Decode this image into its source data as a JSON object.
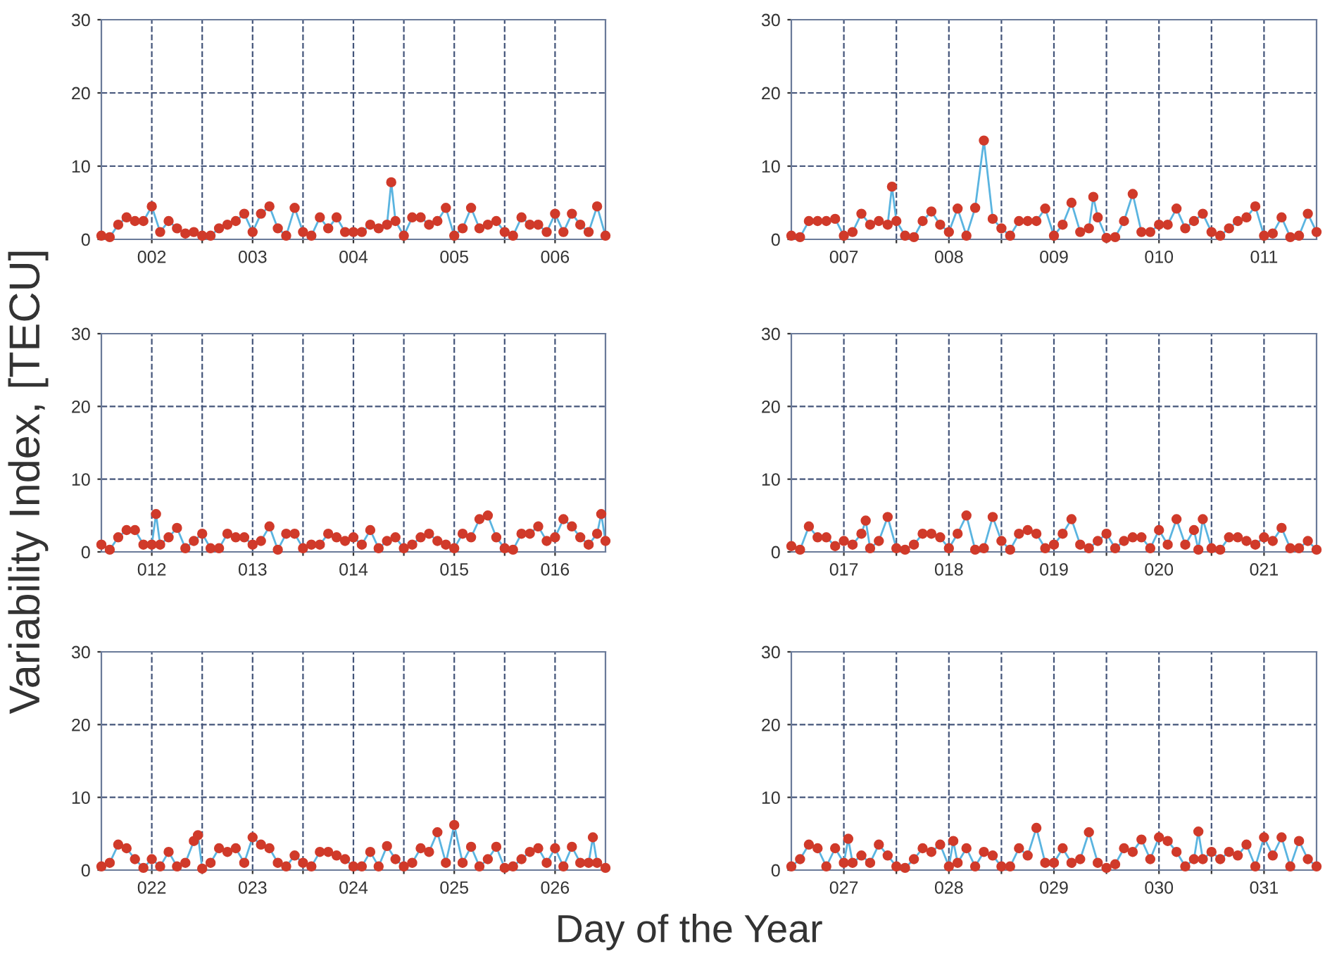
{
  "chart_data": [
    {
      "type": "line",
      "marker": "circle",
      "grid": true,
      "ylim": [
        0,
        30
      ],
      "yticks": [
        0,
        10,
        20,
        30
      ],
      "xlim": [
        1.5,
        6.5
      ],
      "xticks": [
        {
          "value": 2,
          "label": "002"
        },
        {
          "value": 2.5,
          "label": null
        },
        {
          "value": 3,
          "label": "003"
        },
        {
          "value": 3.5,
          "label": null
        },
        {
          "value": 4,
          "label": "004"
        },
        {
          "value": 4.5,
          "label": null
        },
        {
          "value": 5,
          "label": "005"
        },
        {
          "value": 5.5,
          "label": null
        },
        {
          "value": 6,
          "label": "006"
        }
      ],
      "x": [
        1.5,
        1.583,
        1.667,
        1.75,
        1.833,
        1.917,
        2.0,
        2.083,
        2.167,
        2.25,
        2.333,
        2.417,
        2.5,
        2.583,
        2.667,
        2.75,
        2.833,
        2.917,
        3.0,
        3.083,
        3.167,
        3.25,
        3.333,
        3.417,
        3.5,
        3.583,
        3.667,
        3.75,
        3.833,
        3.917,
        4.0,
        4.083,
        4.167,
        4.25,
        4.333,
        4.375,
        4.417,
        4.5,
        4.583,
        4.667,
        4.75,
        4.833,
        4.917,
        5.0,
        5.083,
        5.167,
        5.25,
        5.333,
        5.417,
        5.5,
        5.583,
        5.667,
        5.75,
        5.833,
        5.917,
        6.0,
        6.083,
        6.167,
        6.25,
        6.333,
        6.417,
        6.5
      ],
      "series": [
        {
          "color": "#d03a2a",
          "values": [
            0.5,
            0.3,
            2,
            3,
            2.5,
            2.5,
            4.5,
            1,
            2.5,
            1.5,
            0.8,
            1,
            0.5,
            0.5,
            1.5,
            2,
            2.5,
            3.5,
            1,
            3.5,
            4.5,
            1.5,
            0.5,
            4.3,
            1,
            0.5,
            3,
            1.5,
            3,
            1,
            1,
            1,
            2,
            1.5,
            2,
            7.8,
            2.5,
            0.5,
            3,
            3,
            2,
            2.5,
            4.3,
            0.5,
            1.5,
            4.3,
            1.5,
            2,
            2.5,
            1,
            0.5,
            3,
            2,
            2,
            1,
            3.5,
            1,
            3.5,
            2,
            1,
            4.5,
            0.5
          ]
        }
      ]
    },
    {
      "type": "line",
      "marker": "circle",
      "grid": true,
      "ylim": [
        0,
        30
      ],
      "yticks": [
        0,
        10,
        20,
        30
      ],
      "xlim": [
        6.5,
        11.5
      ],
      "xticks": [
        {
          "value": 7,
          "label": "007"
        },
        {
          "value": 7.5,
          "label": null
        },
        {
          "value": 8,
          "label": "008"
        },
        {
          "value": 8.5,
          "label": null
        },
        {
          "value": 9,
          "label": "009"
        },
        {
          "value": 9.5,
          "label": null
        },
        {
          "value": 10,
          "label": "010"
        },
        {
          "value": 10.5,
          "label": null
        },
        {
          "value": 11,
          "label": "011"
        }
      ],
      "x": [
        6.5,
        6.583,
        6.667,
        6.75,
        6.833,
        6.917,
        7.0,
        7.083,
        7.167,
        7.25,
        7.333,
        7.417,
        7.458,
        7.5,
        7.583,
        7.667,
        7.75,
        7.833,
        7.917,
        8.0,
        8.083,
        8.167,
        8.25,
        8.333,
        8.417,
        8.5,
        8.583,
        8.667,
        8.75,
        8.833,
        8.917,
        9.0,
        9.083,
        9.167,
        9.25,
        9.333,
        9.375,
        9.417,
        9.5,
        9.583,
        9.667,
        9.75,
        9.833,
        9.917,
        10.0,
        10.083,
        10.167,
        10.25,
        10.333,
        10.417,
        10.5,
        10.583,
        10.667,
        10.75,
        10.833,
        10.917,
        11.0,
        11.083,
        11.167,
        11.25,
        11.333,
        11.417,
        11.5
      ],
      "series": [
        {
          "color": "#d03a2a",
          "values": [
            0.5,
            0.3,
            2.5,
            2.5,
            2.5,
            2.8,
            0.5,
            1,
            3.5,
            2,
            2.5,
            2,
            7.2,
            2.5,
            0.5,
            0.3,
            2.5,
            3.8,
            2,
            1,
            4.2,
            0.5,
            4.3,
            13.5,
            2.8,
            1.5,
            0.5,
            2.5,
            2.5,
            2.5,
            4.2,
            0.5,
            2,
            5,
            1,
            1.5,
            5.8,
            3,
            0.2,
            0.3,
            2.5,
            6.2,
            1,
            1,
            2,
            2,
            4.2,
            1.5,
            2.5,
            3.5,
            1,
            0.5,
            1.5,
            2.5,
            3,
            4.5,
            0.5,
            0.8,
            3,
            0.3,
            0.5,
            3.5,
            1
          ]
        }
      ]
    },
    {
      "type": "line",
      "marker": "circle",
      "grid": true,
      "ylim": [
        0,
        30
      ],
      "yticks": [
        0,
        10,
        20,
        30
      ],
      "xlim": [
        11.5,
        16.5
      ],
      "ylabel": "Variability Index, [TECU]",
      "xticks": [
        {
          "value": 12,
          "label": "012"
        },
        {
          "value": 12.5,
          "label": null
        },
        {
          "value": 13,
          "label": "013"
        },
        {
          "value": 13.5,
          "label": null
        },
        {
          "value": 14,
          "label": "014"
        },
        {
          "value": 14.5,
          "label": null
        },
        {
          "value": 15,
          "label": "015"
        },
        {
          "value": 15.5,
          "label": null
        },
        {
          "value": 16,
          "label": "016"
        }
      ],
      "x": [
        11.5,
        11.583,
        11.667,
        11.75,
        11.833,
        11.917,
        12.0,
        12.042,
        12.083,
        12.167,
        12.25,
        12.333,
        12.417,
        12.5,
        12.583,
        12.667,
        12.75,
        12.833,
        12.917,
        13.0,
        13.083,
        13.167,
        13.25,
        13.333,
        13.417,
        13.5,
        13.583,
        13.667,
        13.75,
        13.833,
        13.917,
        14.0,
        14.083,
        14.167,
        14.25,
        14.333,
        14.417,
        14.5,
        14.583,
        14.667,
        14.75,
        14.833,
        14.917,
        15.0,
        15.083,
        15.167,
        15.25,
        15.333,
        15.417,
        15.5,
        15.583,
        15.667,
        15.75,
        15.833,
        15.917,
        16.0,
        16.083,
        16.167,
        16.25,
        16.333,
        16.417,
        16.458,
        16.5
      ],
      "series": [
        {
          "color": "#d03a2a",
          "values": [
            1,
            0.3,
            2,
            3,
            3,
            1,
            1,
            5.2,
            1,
            2,
            3.3,
            0.5,
            1.5,
            2.5,
            0.5,
            0.5,
            2.5,
            2,
            2,
            1,
            1.5,
            3.5,
            0.3,
            2.5,
            2.5,
            0.5,
            1,
            1,
            2.5,
            2,
            1.5,
            2,
            1,
            3,
            0.5,
            1.5,
            2,
            0.5,
            1,
            2,
            2.5,
            1.5,
            1,
            0.5,
            2.5,
            2,
            4.5,
            5,
            2,
            0.5,
            0.3,
            2.5,
            2.5,
            3.5,
            1.5,
            2,
            4.5,
            3.5,
            2,
            1,
            2.5,
            5.2,
            1.5
          ]
        }
      ]
    },
    {
      "type": "line",
      "marker": "circle",
      "grid": true,
      "ylim": [
        0,
        30
      ],
      "yticks": [
        0,
        10,
        20,
        30
      ],
      "xlim": [
        16.5,
        21.5
      ],
      "xticks": [
        {
          "value": 17,
          "label": "017"
        },
        {
          "value": 17.5,
          "label": null
        },
        {
          "value": 18,
          "label": "018"
        },
        {
          "value": 18.5,
          "label": null
        },
        {
          "value": 19,
          "label": "019"
        },
        {
          "value": 19.5,
          "label": null
        },
        {
          "value": 20,
          "label": "020"
        },
        {
          "value": 20.5,
          "label": null
        },
        {
          "value": 21,
          "label": "021"
        }
      ],
      "x": [
        16.5,
        16.583,
        16.667,
        16.75,
        16.833,
        16.917,
        17.0,
        17.083,
        17.167,
        17.208,
        17.25,
        17.333,
        17.417,
        17.5,
        17.583,
        17.667,
        17.75,
        17.833,
        17.917,
        18.0,
        18.083,
        18.167,
        18.25,
        18.333,
        18.417,
        18.5,
        18.583,
        18.667,
        18.75,
        18.833,
        18.917,
        19.0,
        19.083,
        19.167,
        19.25,
        19.333,
        19.417,
        19.5,
        19.583,
        19.667,
        19.75,
        19.833,
        19.917,
        20.0,
        20.083,
        20.167,
        20.25,
        20.333,
        20.375,
        20.417,
        20.5,
        20.583,
        20.667,
        20.75,
        20.833,
        20.917,
        21.0,
        21.083,
        21.167,
        21.25,
        21.333,
        21.417,
        21.5
      ],
      "series": [
        {
          "color": "#d03a2a",
          "values": [
            0.8,
            0.3,
            3.5,
            2,
            2,
            0.8,
            1.5,
            1,
            2.5,
            4.3,
            0.5,
            1.5,
            4.8,
            0.5,
            0.3,
            1,
            2.5,
            2.5,
            2,
            0.5,
            2.5,
            5,
            0.3,
            0.5,
            4.8,
            1.5,
            0.3,
            2.5,
            3,
            2.5,
            0.5,
            1,
            2.5,
            4.5,
            1,
            0.5,
            1.5,
            2.5,
            0.5,
            1.5,
            2,
            2,
            0.5,
            3,
            1,
            4.5,
            1,
            3,
            0.3,
            4.5,
            0.5,
            0.3,
            2,
            2,
            1.5,
            1,
            2,
            1.5,
            3.3,
            0.5,
            0.5,
            1.5,
            0.3
          ]
        }
      ]
    },
    {
      "type": "line",
      "marker": "circle",
      "grid": true,
      "ylim": [
        0,
        30
      ],
      "yticks": [
        0,
        10,
        20,
        30
      ],
      "xlim": [
        21.5,
        26.5
      ],
      "xlabel": "Day of the Year",
      "xticks": [
        {
          "value": 22,
          "label": "022"
        },
        {
          "value": 22.5,
          "label": null
        },
        {
          "value": 23,
          "label": "023"
        },
        {
          "value": 23.5,
          "label": null
        },
        {
          "value": 24,
          "label": "024"
        },
        {
          "value": 24.5,
          "label": null
        },
        {
          "value": 25,
          "label": "025"
        },
        {
          "value": 25.5,
          "label": null
        },
        {
          "value": 26,
          "label": "026"
        }
      ],
      "x": [
        21.5,
        21.583,
        21.667,
        21.75,
        21.833,
        21.917,
        22.0,
        22.083,
        22.167,
        22.25,
        22.333,
        22.417,
        22.458,
        22.5,
        22.583,
        22.667,
        22.75,
        22.833,
        22.917,
        23.0,
        23.083,
        23.167,
        23.25,
        23.333,
        23.417,
        23.5,
        23.583,
        23.667,
        23.75,
        23.833,
        23.917,
        24.0,
        24.083,
        24.167,
        24.25,
        24.333,
        24.417,
        24.5,
        24.583,
        24.667,
        24.75,
        24.833,
        24.917,
        25.0,
        25.083,
        25.167,
        25.25,
        25.333,
        25.417,
        25.5,
        25.583,
        25.667,
        25.75,
        25.833,
        25.917,
        26.0,
        26.083,
        26.167,
        26.25,
        26.333,
        26.375,
        26.417,
        26.5
      ],
      "series": [
        {
          "color": "#d03a2a",
          "values": [
            0.5,
            1,
            3.5,
            3,
            1.5,
            0.3,
            1.5,
            0.5,
            2.5,
            0.5,
            1,
            4,
            4.8,
            0.2,
            1,
            3,
            2.5,
            3,
            1,
            4.5,
            3.5,
            3,
            1,
            0.5,
            2,
            1,
            0.5,
            2.5,
            2.5,
            2,
            1.5,
            0.5,
            0.5,
            2.5,
            0.5,
            3.3,
            1.5,
            0.5,
            1,
            3,
            2.5,
            5.2,
            1,
            6.2,
            1,
            3.2,
            0.5,
            1.5,
            3.2,
            0.3,
            0.5,
            1.5,
            2.5,
            3,
            1,
            3,
            0.5,
            3.2,
            1,
            1,
            4.5,
            1,
            0.3
          ]
        }
      ]
    },
    {
      "type": "line",
      "marker": "circle",
      "grid": true,
      "ylim": [
        0,
        30
      ],
      "yticks": [
        0,
        10,
        20,
        30
      ],
      "xlim": [
        26.5,
        31.5
      ],
      "xticks": [
        {
          "value": 27,
          "label": "027"
        },
        {
          "value": 27.5,
          "label": null
        },
        {
          "value": 28,
          "label": "028"
        },
        {
          "value": 28.5,
          "label": null
        },
        {
          "value": 29,
          "label": "029"
        },
        {
          "value": 29.5,
          "label": null
        },
        {
          "value": 30,
          "label": "030"
        },
        {
          "value": 30.5,
          "label": null
        },
        {
          "value": 31,
          "label": "031"
        }
      ],
      "x": [
        26.5,
        26.583,
        26.667,
        26.75,
        26.833,
        26.917,
        27.0,
        27.042,
        27.083,
        27.167,
        27.25,
        27.333,
        27.417,
        27.5,
        27.583,
        27.667,
        27.75,
        27.833,
        27.917,
        28.0,
        28.042,
        28.083,
        28.167,
        28.25,
        28.333,
        28.417,
        28.5,
        28.583,
        28.667,
        28.75,
        28.833,
        28.917,
        29.0,
        29.083,
        29.167,
        29.25,
        29.333,
        29.417,
        29.5,
        29.583,
        29.667,
        29.75,
        29.833,
        29.917,
        30.0,
        30.083,
        30.167,
        30.25,
        30.333,
        30.375,
        30.417,
        30.5,
        30.583,
        30.667,
        30.75,
        30.833,
        30.917,
        31.0,
        31.083,
        31.167,
        31.25,
        31.333,
        31.417,
        31.5
      ],
      "series": [
        {
          "color": "#d03a2a",
          "values": [
            0.5,
            1.5,
            3.5,
            3,
            0.5,
            3,
            1,
            4.3,
            1,
            2,
            1,
            3.5,
            2,
            0.5,
            0.3,
            1.5,
            3,
            2.5,
            3.5,
            0.5,
            4,
            1,
            3,
            0.5,
            2.5,
            2,
            0.5,
            0.5,
            3,
            2,
            5.8,
            1,
            1,
            3,
            1,
            1.5,
            5.2,
            1,
            0.3,
            0.8,
            3,
            2.5,
            4.2,
            1.5,
            4.5,
            4,
            2.5,
            0.5,
            1.5,
            5.3,
            1.5,
            2.5,
            1.5,
            2.5,
            2,
            3.5,
            0.5,
            4.5,
            2,
            4.5,
            0.5,
            4,
            1.5,
            0.5
          ]
        }
      ]
    }
  ]
}
